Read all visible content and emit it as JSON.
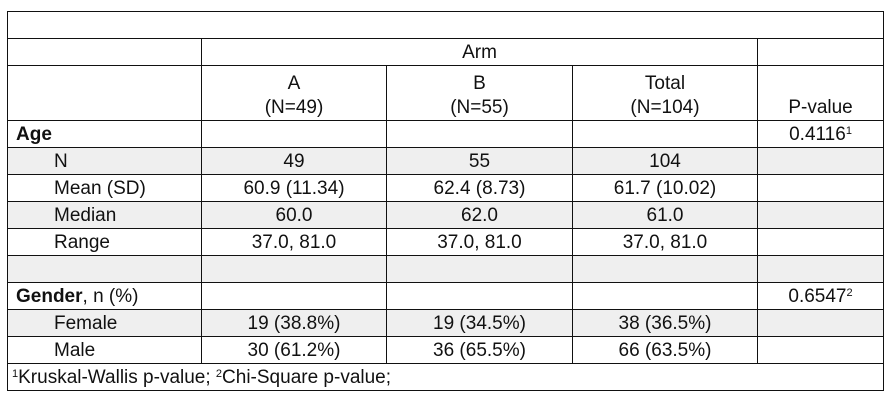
{
  "header": {
    "group_label": "Arm",
    "columns": [
      {
        "name": "A",
        "n": "(N=49)"
      },
      {
        "name": "B",
        "n": "(N=55)"
      },
      {
        "name": "Total",
        "n": "(N=104)"
      }
    ],
    "pvalue_label": "P-value"
  },
  "age": {
    "label": "Age",
    "pvalue": "0.4116",
    "pvalue_note": "1",
    "rows": [
      {
        "label": "N",
        "values": [
          "49",
          "55",
          "104"
        ]
      },
      {
        "label": "Mean (SD)",
        "values": [
          "60.9 (11.34)",
          "62.4 (8.73)",
          "61.7 (10.02)"
        ]
      },
      {
        "label": "Median",
        "values": [
          "60.0",
          "62.0",
          "61.0"
        ]
      },
      {
        "label": "Range",
        "values": [
          "37.0, 81.0",
          "37.0, 81.0",
          "37.0, 81.0"
        ]
      }
    ]
  },
  "gender": {
    "label": "Gender",
    "label_suffix": ", n (%)",
    "pvalue": "0.6547",
    "pvalue_note": "2",
    "rows": [
      {
        "label": "Female",
        "values": [
          "19 (38.8%)",
          "19 (34.5%)",
          "38 (36.5%)"
        ]
      },
      {
        "label": "Male",
        "values": [
          "30 (61.2%)",
          "36 (65.5%)",
          "66 (63.5%)"
        ]
      }
    ]
  },
  "footnote": {
    "n1": "1",
    "t1": "Kruskal-Wallis p-value; ",
    "n2": "2",
    "t2": "Chi-Square p-value;"
  },
  "colors": {
    "shaded_row": "#efefef",
    "border": "#111111"
  }
}
